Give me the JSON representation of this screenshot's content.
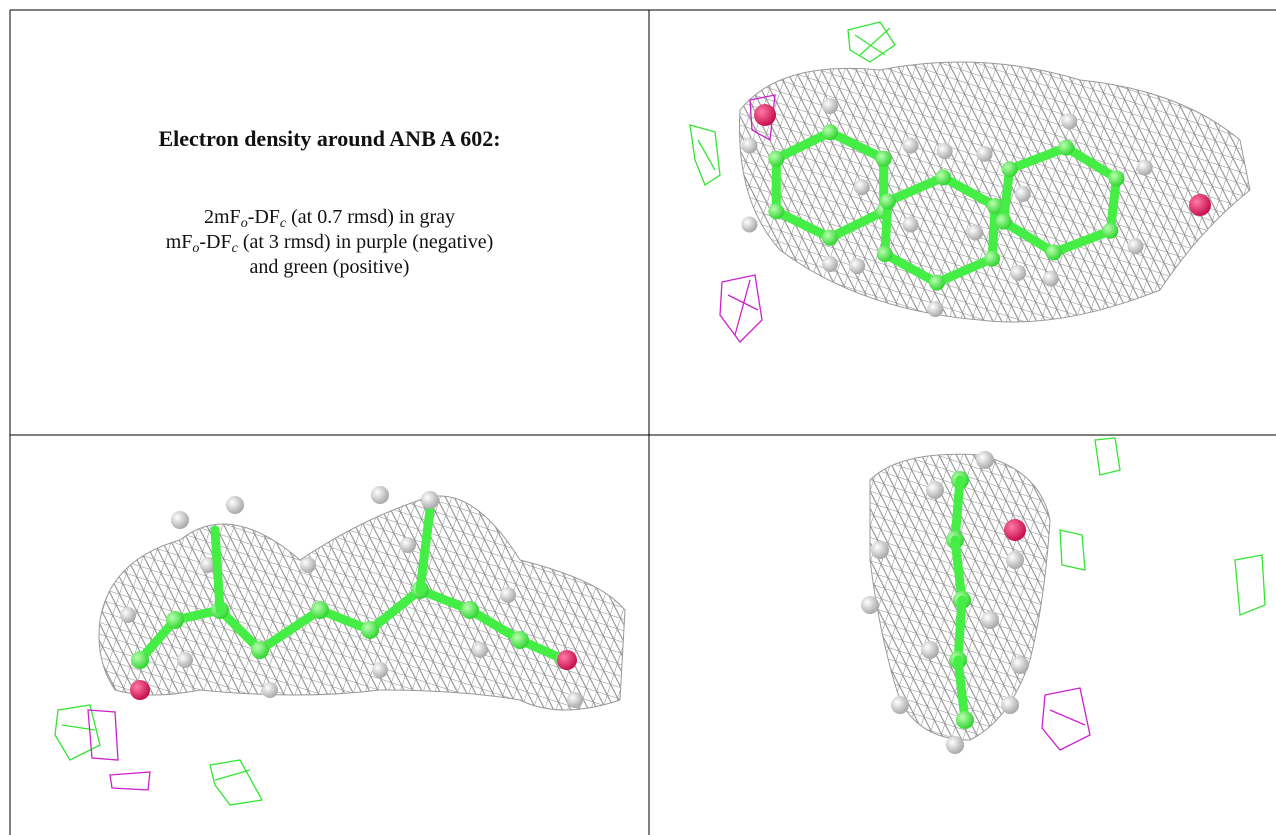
{
  "header": {
    "title": "Electron density around ANB A 602:"
  },
  "legend": {
    "lines": [
      [
        "2mF",
        "o",
        "-DF",
        "c",
        " (at 0.7 rmsd) in gray"
      ],
      [
        "mF",
        "o",
        "-DF",
        "c",
        " (at 3 rmsd) in purple (negative)"
      ],
      [
        "and green (positive)"
      ]
    ]
  }
}
